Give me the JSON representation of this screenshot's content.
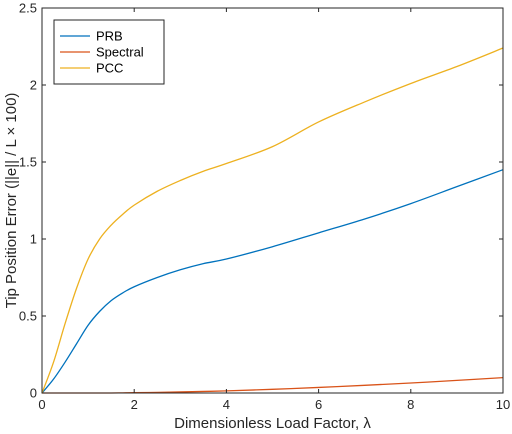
{
  "chart_data": {
    "type": "line",
    "xlabel": "Dimensionless Load Factor, λ",
    "ylabel": "Tip Position Error (||e|| / L × 100)",
    "xlim": [
      0,
      10
    ],
    "ylim": [
      0,
      2.5
    ],
    "xticks": [
      0,
      2,
      4,
      6,
      8,
      10
    ],
    "yticks": [
      0,
      0.5,
      1,
      1.5,
      2,
      2.5
    ],
    "xtick_labels": [
      "0",
      "2",
      "4",
      "6",
      "8",
      "10"
    ],
    "ytick_labels": [
      "0",
      "0.5",
      "1",
      "1.5",
      "2",
      "2.5"
    ],
    "grid": false,
    "legend_position": "top-left",
    "x": [
      0,
      0.25,
      0.5,
      0.75,
      1,
      1.25,
      1.5,
      1.75,
      2,
      2.5,
      3,
      3.5,
      4,
      5,
      6,
      7,
      8,
      9,
      10
    ],
    "series": [
      {
        "name": "PRB",
        "color": "#0072BD",
        "values": [
          0,
          0.09,
          0.2,
          0.32,
          0.44,
          0.53,
          0.6,
          0.65,
          0.69,
          0.75,
          0.8,
          0.84,
          0.87,
          0.95,
          1.04,
          1.13,
          1.23,
          1.34,
          1.45
        ]
      },
      {
        "name": "Spectral",
        "color": "#D95319",
        "values": [
          0,
          0,
          0,
          0,
          0,
          0,
          0,
          0.001,
          0.002,
          0.004,
          0.007,
          0.01,
          0.014,
          0.024,
          0.036,
          0.05,
          0.065,
          0.082,
          0.1
        ]
      },
      {
        "name": "PCC",
        "color": "#EDB120",
        "values": [
          0,
          0.2,
          0.45,
          0.68,
          0.87,
          1.0,
          1.09,
          1.16,
          1.22,
          1.31,
          1.38,
          1.44,
          1.49,
          1.6,
          1.76,
          1.89,
          2.01,
          2.12,
          2.24
        ]
      }
    ]
  }
}
